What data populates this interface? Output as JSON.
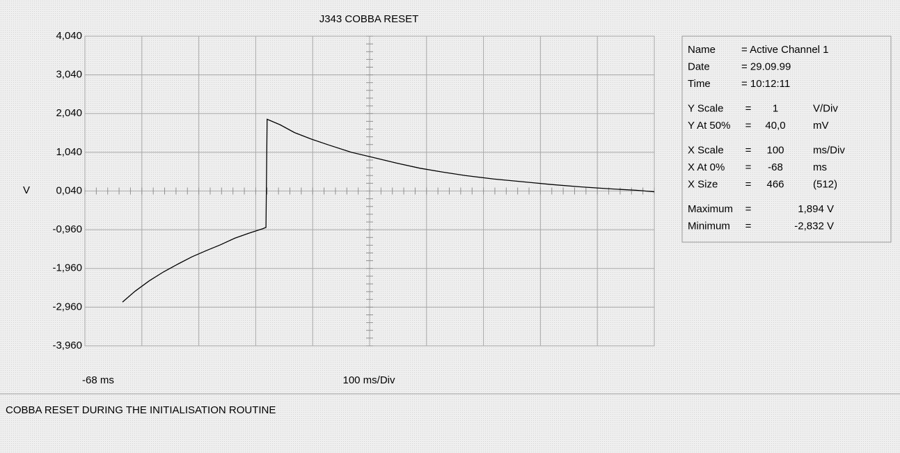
{
  "chart_data": {
    "type": "line",
    "title": "J343 COBBA RESET",
    "y_label": "V",
    "x_label": "100 ms/Div",
    "x_start_label": "-68 ms",
    "caption": "COBBA RESET DURING THE INITIALISATION ROUTINE",
    "xlim": [
      -68,
      932
    ],
    "xticks": [
      -68,
      32,
      132,
      232,
      332,
      432,
      532,
      632,
      732,
      832,
      932
    ],
    "ylim": [
      -3.96,
      4.04
    ],
    "yticks": [
      {
        "value": 4.04,
        "label": "4,040"
      },
      {
        "value": 3.04,
        "label": "3,040"
      },
      {
        "value": 2.04,
        "label": "2,040"
      },
      {
        "value": 1.04,
        "label": "1,040"
      },
      {
        "value": 0.04,
        "label": "0,040"
      },
      {
        "value": -0.96,
        "label": "-0,960"
      },
      {
        "value": -1.96,
        "label": "-1,960"
      },
      {
        "value": -2.96,
        "label": "-2,960"
      },
      {
        "value": -3.96,
        "label": "-3,960"
      }
    ],
    "grid": true,
    "series": [
      {
        "name": "Active Channel 1",
        "color": "#000000",
        "x": [
          -2,
          20,
          45,
          70,
          95,
          120,
          145,
          170,
          195,
          220,
          245,
          250,
          252,
          275,
          300,
          330,
          360,
          400,
          440,
          480,
          520,
          560,
          600,
          650,
          700,
          750,
          800,
          850,
          900,
          932
        ],
        "values": [
          -2.83,
          -2.55,
          -2.28,
          -2.05,
          -1.85,
          -1.66,
          -1.5,
          -1.35,
          -1.18,
          -1.05,
          -0.93,
          -0.9,
          1.894,
          1.75,
          1.55,
          1.38,
          1.23,
          1.04,
          0.9,
          0.76,
          0.63,
          0.53,
          0.44,
          0.35,
          0.28,
          0.21,
          0.15,
          0.1,
          0.06,
          0.02
        ]
      }
    ],
    "info_groups": [
      [
        [
          "Name",
          "= Active Channel 1"
        ],
        [
          "Date",
          "= 29.09.99"
        ],
        [
          "Time",
          "= 10:12:11"
        ]
      ],
      [
        [
          "Y Scale",
          "=",
          "1",
          "V/Div"
        ],
        [
          "Y At 50%",
          "=",
          "40,0",
          "mV"
        ]
      ],
      [
        [
          "X Scale",
          "=",
          "100",
          "ms/Div"
        ],
        [
          "X At 0%",
          "=",
          "-68",
          "ms"
        ],
        [
          "X Size",
          "=",
          "466",
          "(512)"
        ]
      ],
      [
        [
          "Maximum",
          "=",
          "1,894 V"
        ],
        [
          "Minimum",
          "=",
          "-2,832 V"
        ]
      ]
    ]
  }
}
